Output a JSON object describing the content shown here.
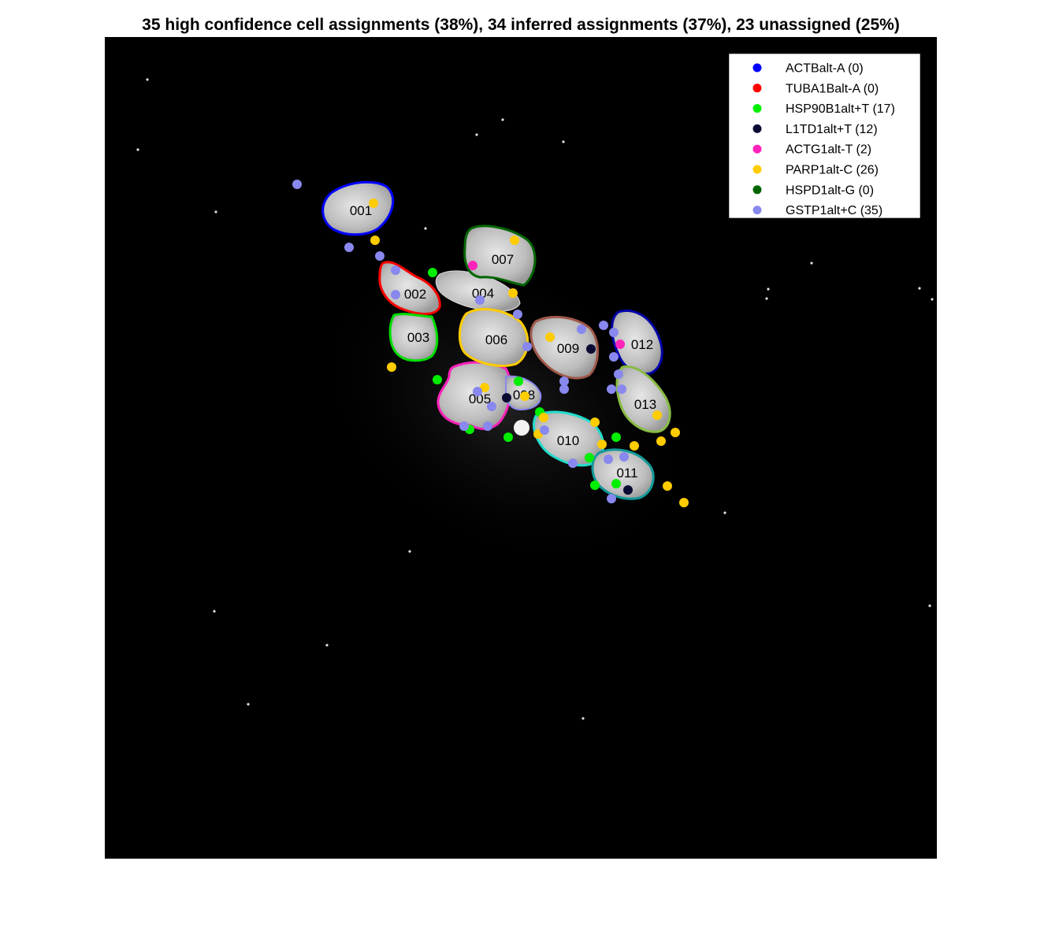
{
  "title": "35 high confidence cell assignments (38%), 34 inferred assignments (37%), 23 unassigned (25%)",
  "legend": [
    {
      "label": "ACTBalt-A (0)",
      "color": "#0000ff"
    },
    {
      "label": "TUBA1Balt-A (0)",
      "color": "#ff0000"
    },
    {
      "label": "HSP90B1alt+T (17)",
      "color": "#00ee00"
    },
    {
      "label": "L1TD1alt+T (12)",
      "color": "#0a0a33"
    },
    {
      "label": "ACTG1alt-T (2)",
      "color": "#ff22bb"
    },
    {
      "label": "PARP1alt-C (26)",
      "color": "#ffcc00"
    },
    {
      "label": "HSPD1alt-G (0)",
      "color": "#006600"
    },
    {
      "label": "GSTP1alt+C (35)",
      "color": "#8888ee"
    }
  ],
  "cells": [
    {
      "label": "001",
      "outline_color": "#0000ff"
    },
    {
      "label": "002",
      "outline_color": "#ff0000"
    },
    {
      "label": "003",
      "outline_color": "#00dd00"
    },
    {
      "label": "004",
      "outline_color": "#ffffff"
    },
    {
      "label": "005",
      "outline_color": "#ff22bb"
    },
    {
      "label": "006",
      "outline_color": "#ffcc00"
    },
    {
      "label": "007",
      "outline_color": "#006600"
    },
    {
      "label": "008",
      "outline_color": "#8888ee"
    },
    {
      "label": "009",
      "outline_color": "#a0584a"
    },
    {
      "label": "010",
      "outline_color": "#22ddcc"
    },
    {
      "label": "011",
      "outline_color": "#119999"
    },
    {
      "label": "012",
      "outline_color": "#0000aa"
    },
    {
      "label": "013",
      "outline_color": "#88bb44"
    }
  ]
}
